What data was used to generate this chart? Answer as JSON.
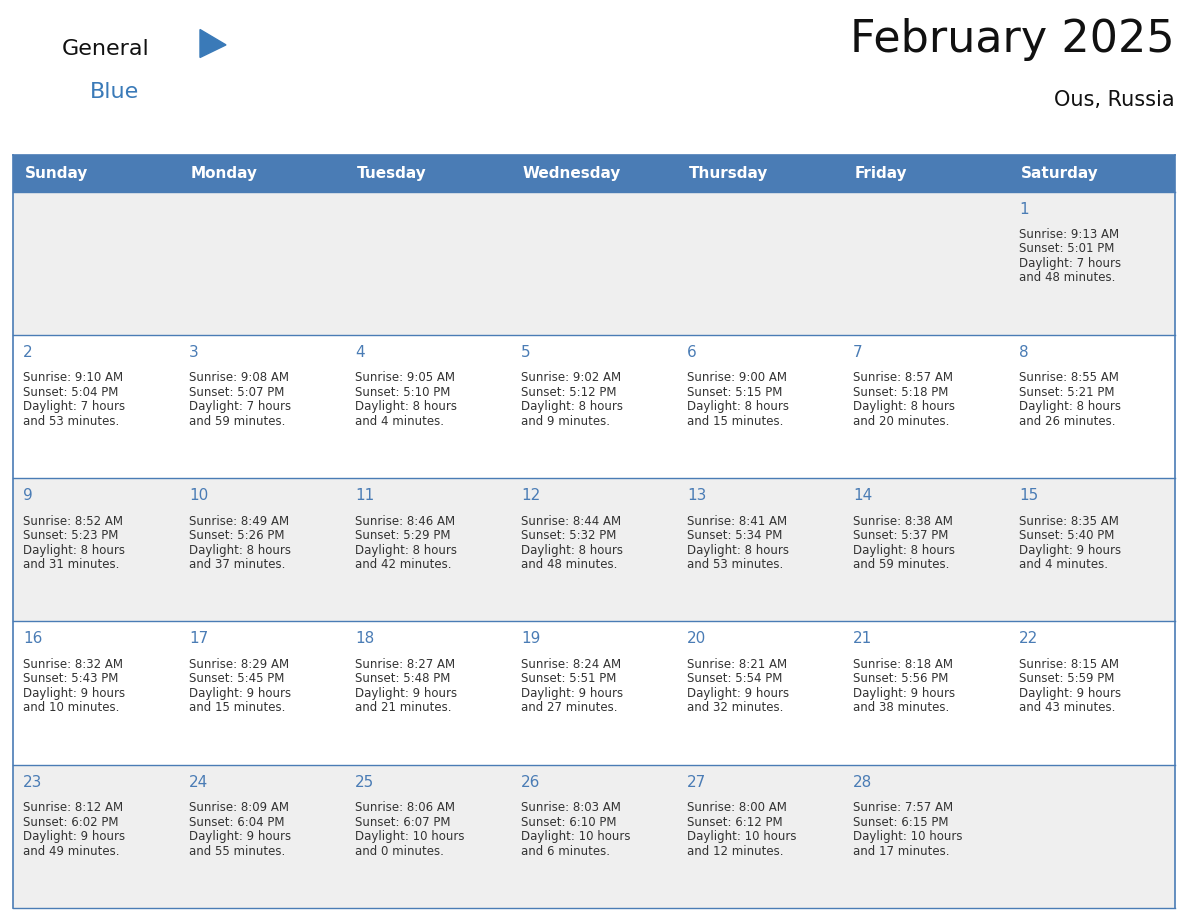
{
  "title": "February 2025",
  "subtitle": "Ous, Russia",
  "header_bg": "#4a7cb5",
  "header_text_color": "#ffffff",
  "day_names": [
    "Sunday",
    "Monday",
    "Tuesday",
    "Wednesday",
    "Thursday",
    "Friday",
    "Saturday"
  ],
  "cell_bg_even": "#efefef",
  "cell_bg_odd": "#ffffff",
  "border_color": "#4a7cb5",
  "text_color": "#333333",
  "num_color": "#4a7cb5",
  "days": [
    {
      "day": 1,
      "col": 6,
      "row": 0,
      "sunrise": "9:13 AM",
      "sunset": "5:01 PM",
      "daylight_h": "7 hours",
      "daylight_m": "and 48 minutes."
    },
    {
      "day": 2,
      "col": 0,
      "row": 1,
      "sunrise": "9:10 AM",
      "sunset": "5:04 PM",
      "daylight_h": "7 hours",
      "daylight_m": "and 53 minutes."
    },
    {
      "day": 3,
      "col": 1,
      "row": 1,
      "sunrise": "9:08 AM",
      "sunset": "5:07 PM",
      "daylight_h": "7 hours",
      "daylight_m": "and 59 minutes."
    },
    {
      "day": 4,
      "col": 2,
      "row": 1,
      "sunrise": "9:05 AM",
      "sunset": "5:10 PM",
      "daylight_h": "8 hours",
      "daylight_m": "and 4 minutes."
    },
    {
      "day": 5,
      "col": 3,
      "row": 1,
      "sunrise": "9:02 AM",
      "sunset": "5:12 PM",
      "daylight_h": "8 hours",
      "daylight_m": "and 9 minutes."
    },
    {
      "day": 6,
      "col": 4,
      "row": 1,
      "sunrise": "9:00 AM",
      "sunset": "5:15 PM",
      "daylight_h": "8 hours",
      "daylight_m": "and 15 minutes."
    },
    {
      "day": 7,
      "col": 5,
      "row": 1,
      "sunrise": "8:57 AM",
      "sunset": "5:18 PM",
      "daylight_h": "8 hours",
      "daylight_m": "and 20 minutes."
    },
    {
      "day": 8,
      "col": 6,
      "row": 1,
      "sunrise": "8:55 AM",
      "sunset": "5:21 PM",
      "daylight_h": "8 hours",
      "daylight_m": "and 26 minutes."
    },
    {
      "day": 9,
      "col": 0,
      "row": 2,
      "sunrise": "8:52 AM",
      "sunset": "5:23 PM",
      "daylight_h": "8 hours",
      "daylight_m": "and 31 minutes."
    },
    {
      "day": 10,
      "col": 1,
      "row": 2,
      "sunrise": "8:49 AM",
      "sunset": "5:26 PM",
      "daylight_h": "8 hours",
      "daylight_m": "and 37 minutes."
    },
    {
      "day": 11,
      "col": 2,
      "row": 2,
      "sunrise": "8:46 AM",
      "sunset": "5:29 PM",
      "daylight_h": "8 hours",
      "daylight_m": "and 42 minutes."
    },
    {
      "day": 12,
      "col": 3,
      "row": 2,
      "sunrise": "8:44 AM",
      "sunset": "5:32 PM",
      "daylight_h": "8 hours",
      "daylight_m": "and 48 minutes."
    },
    {
      "day": 13,
      "col": 4,
      "row": 2,
      "sunrise": "8:41 AM",
      "sunset": "5:34 PM",
      "daylight_h": "8 hours",
      "daylight_m": "and 53 minutes."
    },
    {
      "day": 14,
      "col": 5,
      "row": 2,
      "sunrise": "8:38 AM",
      "sunset": "5:37 PM",
      "daylight_h": "8 hours",
      "daylight_m": "and 59 minutes."
    },
    {
      "day": 15,
      "col": 6,
      "row": 2,
      "sunrise": "8:35 AM",
      "sunset": "5:40 PM",
      "daylight_h": "9 hours",
      "daylight_m": "and 4 minutes."
    },
    {
      "day": 16,
      "col": 0,
      "row": 3,
      "sunrise": "8:32 AM",
      "sunset": "5:43 PM",
      "daylight_h": "9 hours",
      "daylight_m": "and 10 minutes."
    },
    {
      "day": 17,
      "col": 1,
      "row": 3,
      "sunrise": "8:29 AM",
      "sunset": "5:45 PM",
      "daylight_h": "9 hours",
      "daylight_m": "and 15 minutes."
    },
    {
      "day": 18,
      "col": 2,
      "row": 3,
      "sunrise": "8:27 AM",
      "sunset": "5:48 PM",
      "daylight_h": "9 hours",
      "daylight_m": "and 21 minutes."
    },
    {
      "day": 19,
      "col": 3,
      "row": 3,
      "sunrise": "8:24 AM",
      "sunset": "5:51 PM",
      "daylight_h": "9 hours",
      "daylight_m": "and 27 minutes."
    },
    {
      "day": 20,
      "col": 4,
      "row": 3,
      "sunrise": "8:21 AM",
      "sunset": "5:54 PM",
      "daylight_h": "9 hours",
      "daylight_m": "and 32 minutes."
    },
    {
      "day": 21,
      "col": 5,
      "row": 3,
      "sunrise": "8:18 AM",
      "sunset": "5:56 PM",
      "daylight_h": "9 hours",
      "daylight_m": "and 38 minutes."
    },
    {
      "day": 22,
      "col": 6,
      "row": 3,
      "sunrise": "8:15 AM",
      "sunset": "5:59 PM",
      "daylight_h": "9 hours",
      "daylight_m": "and 43 minutes."
    },
    {
      "day": 23,
      "col": 0,
      "row": 4,
      "sunrise": "8:12 AM",
      "sunset": "6:02 PM",
      "daylight_h": "9 hours",
      "daylight_m": "and 49 minutes."
    },
    {
      "day": 24,
      "col": 1,
      "row": 4,
      "sunrise": "8:09 AM",
      "sunset": "6:04 PM",
      "daylight_h": "9 hours",
      "daylight_m": "and 55 minutes."
    },
    {
      "day": 25,
      "col": 2,
      "row": 4,
      "sunrise": "8:06 AM",
      "sunset": "6:07 PM",
      "daylight_h": "10 hours",
      "daylight_m": "and 0 minutes."
    },
    {
      "day": 26,
      "col": 3,
      "row": 4,
      "sunrise": "8:03 AM",
      "sunset": "6:10 PM",
      "daylight_h": "10 hours",
      "daylight_m": "and 6 minutes."
    },
    {
      "day": 27,
      "col": 4,
      "row": 4,
      "sunrise": "8:00 AM",
      "sunset": "6:12 PM",
      "daylight_h": "10 hours",
      "daylight_m": "and 12 minutes."
    },
    {
      "day": 28,
      "col": 5,
      "row": 4,
      "sunrise": "7:57 AM",
      "sunset": "6:15 PM",
      "daylight_h": "10 hours",
      "daylight_m": "and 17 minutes."
    }
  ],
  "num_rows": 5,
  "logo_text_general": "General",
  "logo_text_blue": "Blue",
  "logo_text_color_general": "#111111",
  "logo_text_color_blue": "#3a7ab8",
  "logo_triangle_color": "#3a7ab8",
  "title_fontsize": 32,
  "subtitle_fontsize": 15,
  "header_fontsize": 11,
  "day_num_fontsize": 11,
  "cell_text_fontsize": 8.5
}
